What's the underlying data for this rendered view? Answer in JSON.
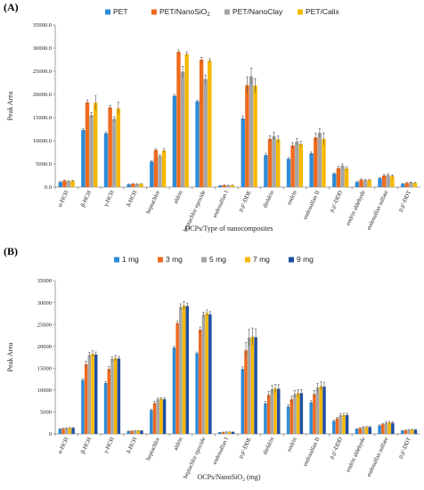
{
  "chart_data": [
    {
      "panel": "(A)",
      "type": "bar",
      "xlabel": "OCPs/Type of nanocomposites",
      "ylabel": "Peak Area",
      "ylim": [
        0,
        35000
      ],
      "yticks": [
        "0.0",
        "5000.0",
        "10000.0",
        "15000.0",
        "20000.0",
        "25000.0",
        "30000.0",
        "35000.0"
      ],
      "grid": false,
      "legend_position": "top",
      "categories": [
        "α-HCH",
        "β-HCH",
        "γ-HCH",
        "δ-HCH",
        "heptachlor",
        "aldrin",
        "heptachlor epoxide",
        "endosulfan I",
        "p,p'-DDE",
        "dieldrin",
        "endrin",
        "endosulfan II",
        "p,p'-DDD",
        "endrin aldehyde",
        "endosulfan sulfate",
        "p,p'-DDT"
      ],
      "series": [
        {
          "name": "PET",
          "legend_main": "PET",
          "legend_sub": "",
          "legend_tail": "",
          "color": "#2E8BD6",
          "values": [
            1100,
            12300,
            11600,
            600,
            5500,
            19700,
            18500,
            300,
            14800,
            6900,
            6100,
            7300,
            2900,
            1100,
            1900,
            700
          ],
          "errors": [
            100,
            300,
            300,
            50,
            200,
            300,
            300,
            50,
            500,
            400,
            300,
            300,
            200,
            100,
            150,
            80
          ]
        },
        {
          "name": "PET/NanoSiO2",
          "legend_main": "PET/NanoSiO",
          "legend_sub": "2",
          "legend_tail": "",
          "color": "#EF6A1E",
          "values": [
            1400,
            18300,
            17200,
            700,
            8000,
            29200,
            27500,
            400,
            22000,
            10400,
            9000,
            10700,
            4100,
            1600,
            2500,
            900
          ],
          "errors": [
            100,
            500,
            400,
            60,
            300,
            400,
            500,
            60,
            1800,
            700,
            600,
            900,
            400,
            150,
            250,
            100
          ]
        },
        {
          "name": "PET/NanoClay",
          "legend_main": "PET/NanoClay",
          "legend_sub": "",
          "legend_tail": "",
          "color": "#A6A6A6",
          "values": [
            1250,
            15500,
            14700,
            650,
            6700,
            24900,
            23300,
            350,
            23900,
            11000,
            9800,
            11700,
            4600,
            1500,
            2600,
            1000
          ],
          "errors": [
            100,
            600,
            500,
            60,
            300,
            1200,
            900,
            60,
            1800,
            800,
            700,
            900,
            400,
            150,
            300,
            100
          ]
        },
        {
          "name": "PET/Calix",
          "legend_main": "PET/Calix",
          "legend_sub": "",
          "legend_tail": "",
          "color": "#F5B800",
          "values": [
            1350,
            18200,
            17000,
            700,
            7900,
            28700,
            27300,
            380,
            21900,
            10300,
            9300,
            10400,
            4000,
            1550,
            2400,
            900
          ],
          "errors": [
            100,
            1500,
            1300,
            60,
            400,
            500,
            400,
            60,
            1500,
            700,
            600,
            1300,
            400,
            150,
            250,
            100
          ]
        }
      ]
    },
    {
      "panel": "(B)",
      "type": "bar",
      "xlabel": "OCPs/NanoSiO2 (mg)",
      "xlabel_main": "OCPs/NanoSiO",
      "xlabel_sub": "2",
      "xlabel_tail": " (mg)",
      "ylabel": "Peak Area",
      "ylim": [
        0,
        35000
      ],
      "yticks": [
        "0",
        "5000",
        "10000",
        "15000",
        "20000",
        "25000",
        "30000",
        "35000"
      ],
      "grid": false,
      "legend_position": "top",
      "categories": [
        "α-HCH",
        "β-HCH",
        "γ-HCH",
        "δ-HCH",
        "heptachlor",
        "aldrin",
        "heptachlor epoxide",
        "endosulfan I",
        "p,p'-DDE",
        "dieldrin",
        "endrin",
        "endosulfan II",
        "p,p'-DDD",
        "endrin aldehyde",
        "endosulfan sulfate",
        "p,p'-DDT"
      ],
      "series": [
        {
          "name": "1 mg",
          "legend_main": "1 mg",
          "legend_sub": "",
          "legend_tail": "",
          "color": "#2E8BD6",
          "values": [
            1100,
            12300,
            11600,
            600,
            5400,
            19700,
            18400,
            300,
            14800,
            7000,
            6200,
            7200,
            2900,
            1100,
            1900,
            700
          ],
          "errors": [
            100,
            300,
            300,
            50,
            200,
            300,
            300,
            50,
            500,
            400,
            400,
            400,
            200,
            100,
            150,
            80
          ]
        },
        {
          "name": "3 mg",
          "legend_main": "3 mg",
          "legend_sub": "",
          "legend_tail": "",
          "color": "#EF6A1E",
          "values": [
            1200,
            15900,
            14800,
            650,
            7000,
            25300,
            23800,
            350,
            19100,
            8900,
            7900,
            9100,
            3500,
            1300,
            2200,
            800
          ],
          "errors": [
            100,
            700,
            600,
            60,
            400,
            500,
            600,
            60,
            1800,
            800,
            700,
            800,
            300,
            150,
            200,
            100
          ]
        },
        {
          "name": "5 mg",
          "legend_main": "5 mg",
          "legend_sub": "",
          "legend_tail": "",
          "color": "#A6A6A6",
          "values": [
            1300,
            18000,
            17100,
            700,
            7900,
            29000,
            27200,
            400,
            22000,
            10200,
            9100,
            10600,
            4200,
            1500,
            2500,
            900
          ],
          "errors": [
            100,
            600,
            500,
            60,
            300,
            700,
            600,
            60,
            1900,
            900,
            800,
            900,
            400,
            150,
            250,
            100
          ]
        },
        {
          "name": "7 mg",
          "legend_main": "7 mg",
          "legend_sub": "",
          "legend_tail": "",
          "color": "#F5B800",
          "values": [
            1350,
            18300,
            17300,
            720,
            8000,
            29300,
            27600,
            420,
            22200,
            10400,
            9300,
            10900,
            4300,
            1550,
            2600,
            950
          ],
          "errors": [
            100,
            700,
            600,
            60,
            300,
            900,
            700,
            60,
            2000,
            900,
            800,
            1000,
            400,
            150,
            250,
            100
          ]
        },
        {
          "name": "9 mg",
          "legend_main": "9 mg",
          "legend_sub": "",
          "legend_tail": "",
          "color": "#1F4FA3",
          "values": [
            1350,
            18100,
            17200,
            710,
            7900,
            29200,
            27300,
            410,
            22100,
            10300,
            9300,
            10800,
            4300,
            1550,
            2500,
            920
          ],
          "errors": [
            100,
            600,
            500,
            60,
            300,
            700,
            600,
            60,
            1900,
            900,
            800,
            900,
            400,
            150,
            250,
            100
          ]
        }
      ]
    }
  ]
}
